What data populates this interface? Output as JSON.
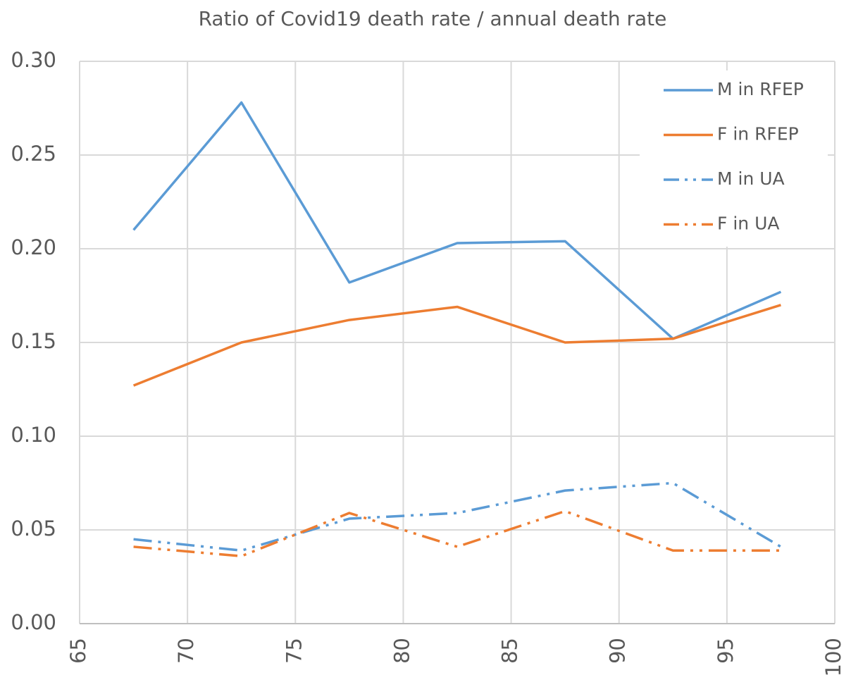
{
  "chart_data": {
    "type": "line",
    "title": "Ratio of Covid19 death rate / annual death rate",
    "x": [
      67.5,
      72.5,
      77.5,
      82.5,
      87.5,
      92.5,
      97.5
    ],
    "series": [
      {
        "name": "M in RFEP",
        "color": "#5b9bd5",
        "dash": "solid",
        "values": [
          0.21,
          0.278,
          0.182,
          0.203,
          0.204,
          0.152,
          0.177
        ]
      },
      {
        "name": "F in RFEP",
        "color": "#ed7d31",
        "dash": "solid",
        "values": [
          0.127,
          0.15,
          0.162,
          0.169,
          0.15,
          0.152,
          0.17
        ]
      },
      {
        "name": "M in UA",
        "color": "#5b9bd5",
        "dash": "dash-dot-dot",
        "values": [
          0.045,
          0.039,
          0.056,
          0.059,
          0.071,
          0.075,
          0.041
        ]
      },
      {
        "name": "F in UA",
        "color": "#ed7d31",
        "dash": "dash-dot-dot",
        "values": [
          0.041,
          0.036,
          0.059,
          0.041,
          0.06,
          0.039,
          0.039
        ]
      }
    ],
    "xlim": [
      65,
      100
    ],
    "xticks": [
      65,
      70,
      75,
      80,
      85,
      90,
      95,
      100
    ],
    "ylim": [
      0,
      0.3
    ],
    "yticks": [
      {
        "value": 0,
        "label": "0.00"
      },
      {
        "value": 0.05,
        "label": "0.05"
      },
      {
        "value": 0.1,
        "label": "0.10"
      },
      {
        "value": 0.15,
        "label": "0.15"
      },
      {
        "value": 0.2,
        "label": "0.20"
      },
      {
        "value": 0.25,
        "label": "0.25"
      },
      {
        "value": 0.3,
        "label": "0.30"
      }
    ],
    "grid": true,
    "legend": "top-right"
  }
}
